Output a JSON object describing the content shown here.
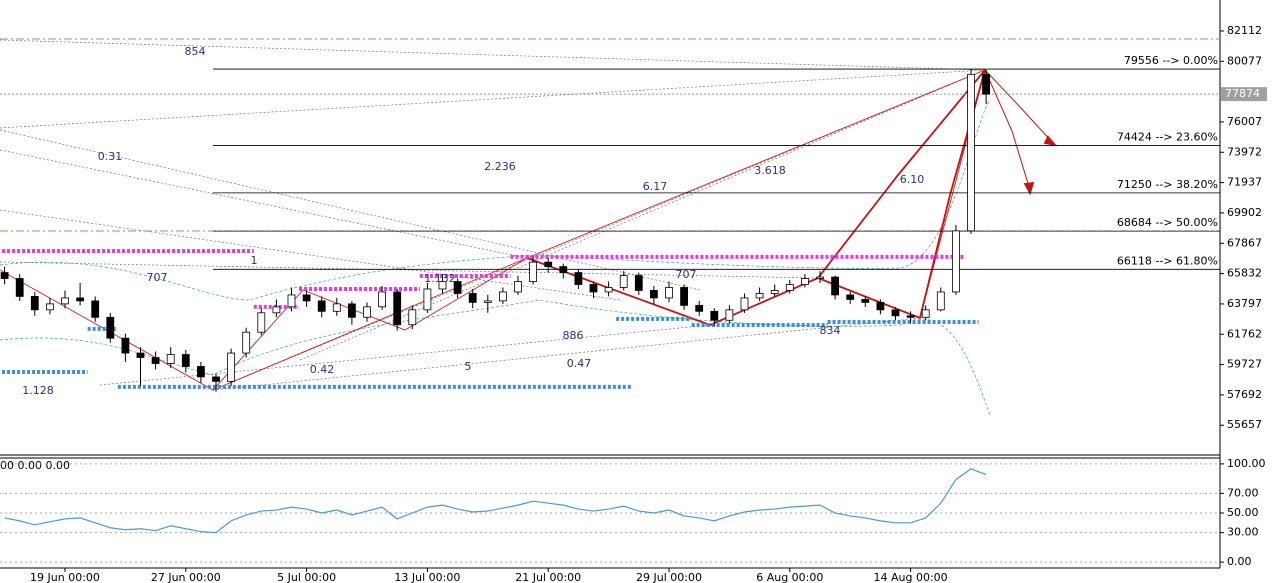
{
  "chart_data": [
    {
      "type": "candlestick",
      "open": [
        65900,
        65500,
        64300,
        63400,
        63800,
        64200,
        64000,
        62900,
        61500,
        60500,
        60200,
        59800,
        60400,
        59600,
        58900,
        58600,
        60500,
        61900,
        63200,
        63600,
        64400,
        64000,
        63300,
        63800,
        62900,
        63600,
        64600,
        62400,
        63400,
        64800,
        65300,
        64500,
        63900,
        64000,
        64600,
        65300,
        66600,
        66300,
        65900,
        65100,
        64600,
        64900,
        65700,
        64700,
        64200,
        64900,
        63700,
        63300,
        62700,
        63400,
        64200,
        64500,
        64700,
        65100,
        65500,
        65600,
        64400,
        64100,
        63900,
        63400,
        63000,
        62900,
        63400,
        64600,
        68700,
        79200
      ],
      "high": [
        66300,
        65800,
        64600,
        64200,
        64700,
        65200,
        64300,
        63200,
        61800,
        60900,
        60600,
        60900,
        60700,
        59900,
        59100,
        60800,
        62200,
        63500,
        64100,
        64900,
        64700,
        64300,
        64200,
        64000,
        63900,
        65000,
        64800,
        63700,
        65200,
        65800,
        65500,
        64800,
        64400,
        64900,
        65700,
        67000,
        66900,
        66500,
        66100,
        65300,
        65300,
        66000,
        65900,
        65000,
        65300,
        65100,
        64000,
        63500,
        63700,
        64500,
        64900,
        65100,
        65400,
        65800,
        66000,
        65700,
        64600,
        64300,
        64100,
        63600,
        63300,
        63700,
        64900,
        69100,
        79556,
        79500
      ],
      "low": [
        65100,
        64000,
        63000,
        63100,
        63500,
        63700,
        62600,
        61200,
        59900,
        58300,
        59400,
        59500,
        59200,
        58500,
        57900,
        58300,
        60200,
        61700,
        62900,
        63300,
        63600,
        62900,
        63000,
        62400,
        62600,
        63400,
        62000,
        62100,
        63200,
        64500,
        64200,
        63500,
        63200,
        63800,
        64400,
        65100,
        65900,
        65500,
        64800,
        64200,
        64300,
        64700,
        64400,
        63800,
        63900,
        63400,
        63000,
        62300,
        62500,
        63200,
        64000,
        64300,
        64500,
        64900,
        65200,
        64100,
        63800,
        63600,
        63100,
        62700,
        62500,
        62700,
        63300,
        64400,
        68500,
        77200
      ],
      "close": [
        65500,
        64300,
        63400,
        63800,
        64200,
        64000,
        62900,
        61500,
        60500,
        60200,
        59800,
        60400,
        59600,
        58900,
        58600,
        60500,
        61900,
        63200,
        63600,
        64400,
        64000,
        63300,
        63800,
        62900,
        63600,
        64600,
        62400,
        63400,
        64800,
        65300,
        64500,
        63900,
        64000,
        64600,
        65300,
        66600,
        66300,
        65900,
        65100,
        64600,
        64900,
        65700,
        64700,
        64200,
        64900,
        63700,
        63300,
        62700,
        63400,
        64200,
        64500,
        64700,
        65100,
        65500,
        65600,
        64400,
        64100,
        63900,
        63400,
        63000,
        62900,
        63400,
        64600,
        68700,
        79200,
        77874
      ],
      "ylim": [
        53660,
        84190
      ],
      "yticks": [
        82112,
        80077,
        76007,
        73972,
        71937,
        69902,
        67867,
        65832,
        63797,
        61762,
        59727,
        57692,
        55657
      ],
      "last_price": 77874,
      "fib_levels": [
        {
          "value": 79556,
          "label": "79556 --> 0.00%"
        },
        {
          "value": 74424,
          "label": "74424 --> 23.60%"
        },
        {
          "value": 71250,
          "label": "71250 --> 38.20%"
        },
        {
          "value": 68684,
          "label": "68684 --> 50.00%"
        },
        {
          "value": 66118,
          "label": "66118 --> 61.80%"
        }
      ],
      "hlines": [
        81575,
        68690
      ],
      "zones": [
        {
          "value": 67350,
          "from": 0,
          "to": 16,
          "color": "#e03fe0"
        },
        {
          "value": 63600,
          "from": 17,
          "to": 19,
          "color": "#e03fe0"
        },
        {
          "value": 64800,
          "from": 20,
          "to": 27,
          "color": "#e03fe0"
        },
        {
          "value": 65670,
          "from": 28,
          "to": 33,
          "color": "#e03fe0"
        },
        {
          "value": 66950,
          "from": 34,
          "to": 63,
          "color": "#e03fe0"
        },
        {
          "value": 59230,
          "from": 0,
          "to": 5,
          "color": "#3a8fe0"
        },
        {
          "value": 62120,
          "from": 6,
          "to": 7,
          "color": "#3a8fe0"
        },
        {
          "value": 58230,
          "from": 8,
          "to": 41,
          "color": "#3a8fe0"
        },
        {
          "value": 62790,
          "from": 41,
          "to": 45,
          "color": "#3a8fe0"
        },
        {
          "value": 62380,
          "from": 46,
          "to": 54,
          "color": "#3a8fe0"
        },
        {
          "value": 62580,
          "from": 55,
          "to": 64,
          "color": "#3a8fe0"
        }
      ],
      "annotations": [
        "854",
        "0.31",
        "2.236",
        "6.17",
        "3.618",
        "6.10",
        "1",
        "707",
        "1.132",
        "707",
        "886",
        "834",
        "0.42",
        "5",
        "0.47",
        "1.128"
      ]
    },
    {
      "type": "line",
      "title": "00 0.00 0.00",
      "color": "#4a9ad4",
      "categories": [
        null,
        null,
        null,
        null,
        "19 Jun 00:00",
        null,
        null,
        null,
        null,
        null,
        null,
        null,
        "27 Jun 00:00",
        null,
        null,
        null,
        null,
        null,
        null,
        null,
        "5 Jul 00:00",
        null,
        null,
        null,
        null,
        null,
        null,
        null,
        "13 Jul 00:00",
        null,
        null,
        null,
        null,
        null,
        null,
        null,
        "21 Jul 00:00",
        null,
        null,
        null,
        null,
        null,
        null,
        null,
        "29 Jul 00:00",
        null,
        null,
        null,
        null,
        null,
        null,
        null,
        "6 Aug 00:00",
        null,
        null,
        null,
        null,
        null,
        null,
        null,
        "14 Aug 00:00",
        null,
        null,
        null,
        null,
        null
      ],
      "values": [
        45,
        42,
        38,
        41,
        44,
        45,
        40,
        35,
        33,
        34,
        32,
        37,
        34,
        31,
        30,
        42,
        48,
        52,
        53,
        56,
        54,
        50,
        53,
        48,
        52,
        56,
        44,
        50,
        56,
        58,
        54,
        51,
        52,
        55,
        58,
        62,
        60,
        58,
        54,
        52,
        54,
        57,
        52,
        50,
        53,
        47,
        45,
        42,
        47,
        51,
        53,
        54,
        56,
        57,
        58,
        50,
        47,
        45,
        42,
        40,
        40,
        45,
        60,
        84,
        95,
        89
      ],
      "ylim": [
        -6,
        106
      ],
      "yticks": [
        {
          "value": 100,
          "label": "100.00"
        },
        {
          "value": 70,
          "label": "70.00"
        },
        {
          "value": 50,
          "label": "50.00"
        },
        {
          "value": 30,
          "label": "30.00"
        },
        {
          "value": 0,
          "label": "0.00"
        }
      ],
      "grid": true
    }
  ]
}
